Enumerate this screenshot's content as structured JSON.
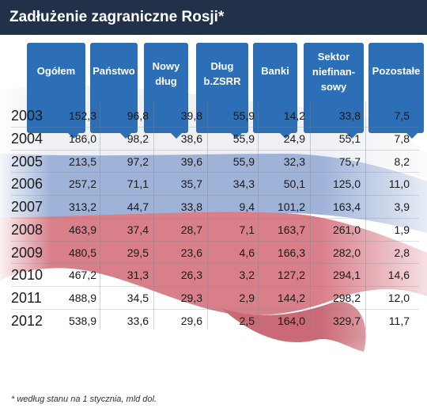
{
  "title": "Zadłużenie zagraniczne Rosji*",
  "footnote": "* według stanu na 1 stycznia, mld dol.",
  "chart_data": {
    "type": "table",
    "columns": [
      "Ogółem",
      "Państwo",
      "Nowy dług",
      "Dług b.ZSRR",
      "Banki",
      "Sektor niefinan-sowy",
      "Pozostałe"
    ],
    "column_lines": [
      [
        "Ogółem"
      ],
      [
        "Państwo"
      ],
      [
        "Nowy",
        "dług"
      ],
      [
        "Dług",
        "b.ZSRR"
      ],
      [
        "Banki"
      ],
      [
        "Sektor",
        "niefinan-",
        "sowy"
      ],
      [
        "Pozostałe"
      ]
    ],
    "rows": [
      {
        "year": "2003",
        "values": [
          "152,3",
          "96,8",
          "39,8",
          "55,9",
          "14,2",
          "33,8",
          "7,5"
        ]
      },
      {
        "year": "2004",
        "values": [
          "186,0",
          "98,2",
          "38,6",
          "55,9",
          "24,9",
          "55,1",
          "7,8"
        ]
      },
      {
        "year": "2005",
        "values": [
          "213,5",
          "97,2",
          "39,6",
          "55,9",
          "32,3",
          "75,7",
          "8,2"
        ]
      },
      {
        "year": "2006",
        "values": [
          "257,2",
          "71,1",
          "35,7",
          "34,3",
          "50,1",
          "125,0",
          "11,0"
        ]
      },
      {
        "year": "2007",
        "values": [
          "313,2",
          "44,7",
          "33,8",
          "9,4",
          "101,2",
          "163,4",
          "3,9"
        ]
      },
      {
        "year": "2008",
        "values": [
          "463,9",
          "37,4",
          "28,7",
          "7,1",
          "163,7",
          "261,0",
          "1,9"
        ]
      },
      {
        "year": "2009",
        "values": [
          "480,5",
          "29,5",
          "23,6",
          "4,6",
          "166,3",
          "282,0",
          "2,8"
        ]
      },
      {
        "year": "2010",
        "values": [
          "467,2",
          "31,3",
          "26,3",
          "3,2",
          "127,2",
          "294,1",
          "14,6"
        ]
      },
      {
        "year": "2011",
        "values": [
          "488,9",
          "34,5",
          "29,3",
          "2,9",
          "144,2",
          "298,2",
          "12,0"
        ]
      },
      {
        "year": "2012",
        "values": [
          "538,9",
          "33,6",
          "29,6",
          "2,5",
          "164,0",
          "329,7",
          "11,7"
        ]
      }
    ]
  },
  "colors": {
    "title_bar": "#21314a",
    "header": "#2d6fb6",
    "flag_white": "#eef0f4",
    "flag_blue": "#8fa6cf",
    "flag_red": "#d9737f"
  }
}
